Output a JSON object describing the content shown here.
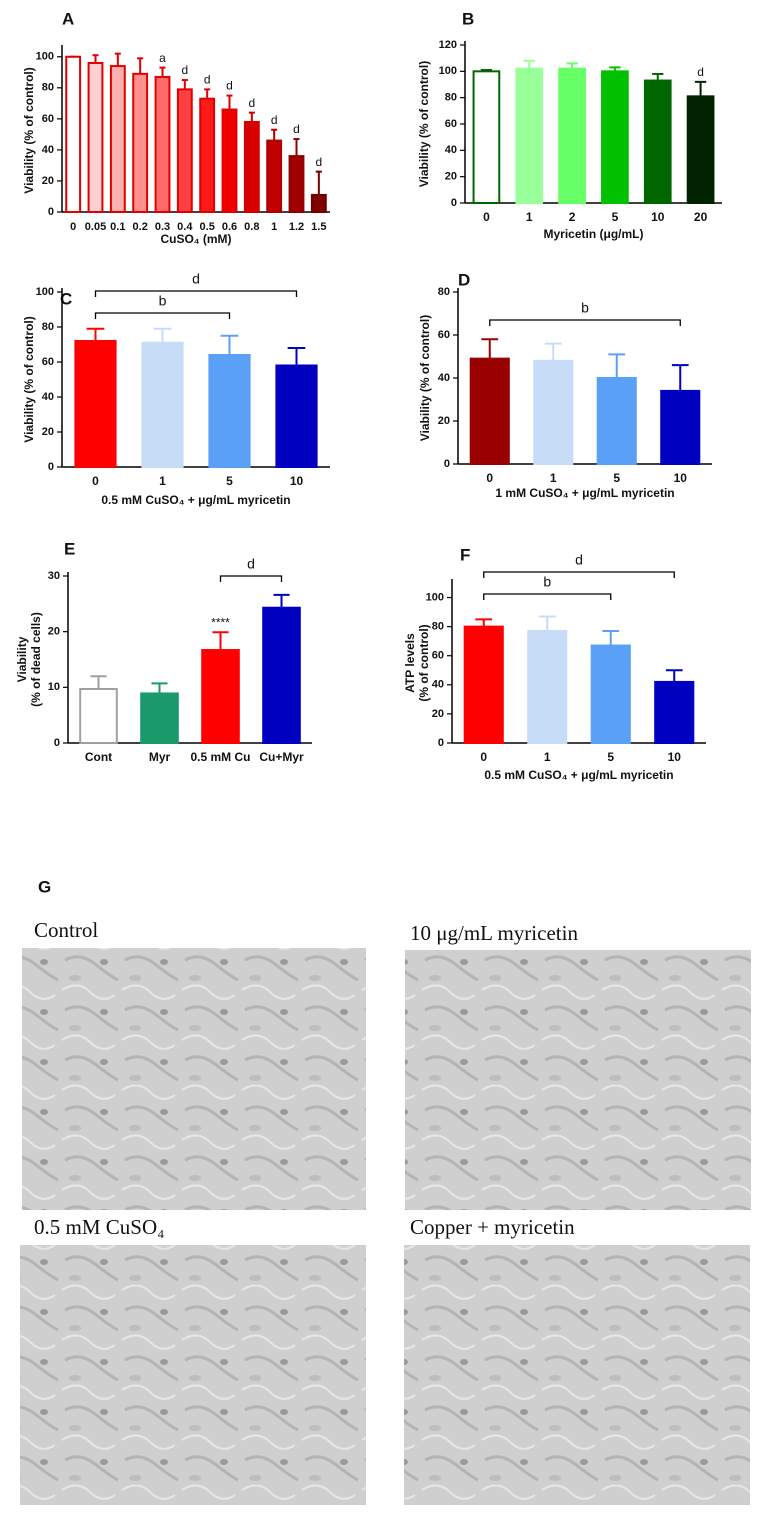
{
  "chart_data": [
    {
      "type": "bar",
      "title": "A",
      "x_label": "CuSO₄ (mM)",
      "y_label": [
        "Viability (% of control)"
      ],
      "categories": [
        "0",
        "0.05",
        "0.1",
        "0.2",
        "0.3",
        "0.4",
        "0.5",
        "0.6",
        "0.8",
        "1",
        "1.2",
        "1.5"
      ],
      "values": [
        100,
        96,
        94,
        89,
        87,
        79,
        73,
        66,
        58,
        46,
        36,
        11
      ],
      "errors": [
        0,
        5,
        8,
        10,
        6,
        6,
        6,
        9,
        6,
        7,
        11,
        15
      ],
      "annotations": [
        null,
        null,
        null,
        null,
        "a",
        "d",
        "d",
        "d",
        "d",
        "d",
        "d",
        "d"
      ],
      "colors": [
        "#ffffff",
        "#ffd0d0",
        "#ffb0b0",
        "#ff9090",
        "#ff6a6a",
        "#ff4040",
        "#ff1a1a",
        "#f00000",
        "#d80000",
        "#c00000",
        "#a00000",
        "#800000"
      ],
      "edge_colors": [
        "#e00000",
        "#e00000",
        "#e00000",
        "#e00000",
        "#e00000",
        "#e00000",
        "#e00000",
        "#e00000",
        "#d00000",
        "#b00000",
        "#900000",
        "#700000"
      ],
      "ylim": [
        0,
        105
      ],
      "yticks": [
        0,
        20,
        40,
        60,
        80,
        100
      ],
      "brackets": []
    },
    {
      "type": "bar",
      "title": "B",
      "x_label": "Myricetin (μg/mL)",
      "y_label": [
        "Viability (% of control)"
      ],
      "categories": [
        "0",
        "1",
        "2",
        "5",
        "10",
        "20"
      ],
      "values": [
        100,
        102,
        102,
        100,
        93,
        81
      ],
      "errors": [
        1,
        6,
        4,
        3,
        5,
        11
      ],
      "annotations": [
        null,
        null,
        null,
        null,
        null,
        "d"
      ],
      "colors": [
        "#ffffff",
        "#99ff99",
        "#66ff66",
        "#00c000",
        "#006600",
        "#002200"
      ],
      "edge_colors": [
        "#006600",
        "#99ff99",
        "#66ff66",
        "#00c000",
        "#006600",
        "#002200"
      ],
      "ylim": [
        0,
        120
      ],
      "yticks": [
        0,
        20,
        40,
        60,
        80,
        100,
        120
      ],
      "brackets": []
    },
    {
      "type": "bar",
      "title": "C",
      "x_label": "0.5 mM CuSO₄ + μg/mL myricetin",
      "y_label": [
        "Viability (% of control)"
      ],
      "categories": [
        "0",
        "1",
        "5",
        "10"
      ],
      "values": [
        72,
        71,
        64,
        58
      ],
      "errors": [
        7,
        8,
        11,
        10
      ],
      "annotations": [
        null,
        null,
        null,
        null
      ],
      "colors": [
        "#ff0000",
        "#c6dcf7",
        "#5aa0f7",
        "#0000c0"
      ],
      "edge_colors": [
        "#ff0000",
        "#c6dcf7",
        "#5aa0f7",
        "#0000c0"
      ],
      "ylim": [
        0,
        100
      ],
      "yticks": [
        0,
        20,
        40,
        60,
        80,
        100
      ],
      "brackets": [
        {
          "start": "0",
          "end": "5",
          "label": "b"
        },
        {
          "start": "0",
          "end": "10",
          "label": "d"
        }
      ]
    },
    {
      "type": "bar",
      "title": "D",
      "x_label": "1 mM CuSO₄ + μg/mL myricetin",
      "y_label": [
        "Viability (% of control)"
      ],
      "categories": [
        "0",
        "1",
        "5",
        "10"
      ],
      "values": [
        49,
        48,
        40,
        34
      ],
      "errors": [
        9,
        8,
        11,
        12
      ],
      "annotations": [
        null,
        null,
        null,
        null
      ],
      "colors": [
        "#990000",
        "#c6dcf7",
        "#5aa0f7",
        "#0000c0"
      ],
      "edge_colors": [
        "#990000",
        "#c6dcf7",
        "#5aa0f7",
        "#0000c0"
      ],
      "ylim": [
        0,
        80
      ],
      "yticks": [
        0,
        20,
        40,
        60,
        80
      ],
      "brackets": [
        {
          "start": "0",
          "end": "10",
          "label": "b"
        }
      ]
    },
    {
      "type": "bar",
      "title": "E",
      "x_label": null,
      "y_label": [
        "Viability",
        "(% of dead cells)"
      ],
      "categories": [
        "Cont",
        "Myr",
        "0.5 mM Cu",
        "Cu+Myr"
      ],
      "values": [
        9.7,
        8.9,
        16.7,
        24.3
      ],
      "errors": [
        2.3,
        1.8,
        3.2,
        2.3
      ],
      "annotations": [
        null,
        null,
        "****",
        null
      ],
      "colors": [
        "#ffffff",
        "#1a9a6a",
        "#ff0000",
        "#0000c0"
      ],
      "edge_colors": [
        "#a0a0a0",
        "#1a9a6a",
        "#ff0000",
        "#0000c0"
      ],
      "ylim": [
        0,
        30
      ],
      "yticks": [
        0,
        10,
        20,
        30
      ],
      "brackets": [
        {
          "start": "0.5 mM Cu",
          "end": "Cu+Myr",
          "label": "d"
        }
      ]
    },
    {
      "type": "bar",
      "title": "F",
      "x_label": "0.5 mM CuSO₄ + μg/mL myricetin",
      "y_label": [
        "ATP levels",
        "(% of control)"
      ],
      "categories": [
        "0",
        "1",
        "5",
        "10"
      ],
      "values": [
        80,
        77,
        67,
        42
      ],
      "errors": [
        5,
        10,
        10,
        8
      ],
      "annotations": [
        null,
        null,
        null,
        null
      ],
      "colors": [
        "#ff0000",
        "#c6dcf7",
        "#5aa0f7",
        "#0000c0"
      ],
      "edge_colors": [
        "#ff0000",
        "#c6dcf7",
        "#5aa0f7",
        "#0000c0"
      ],
      "ylim": [
        0,
        110
      ],
      "yticks": [
        0,
        20,
        40,
        60,
        80,
        100
      ],
      "brackets": [
        {
          "start": "0",
          "end": "5",
          "label": "b"
        },
        {
          "start": "0",
          "end": "10",
          "label": "d"
        }
      ]
    }
  ],
  "panel_g": {
    "title": "G",
    "micrographs": [
      "Control",
      "10 μg/mL myricetin",
      "0.5 mM CuSO₄",
      "Copper + myricetin"
    ]
  }
}
